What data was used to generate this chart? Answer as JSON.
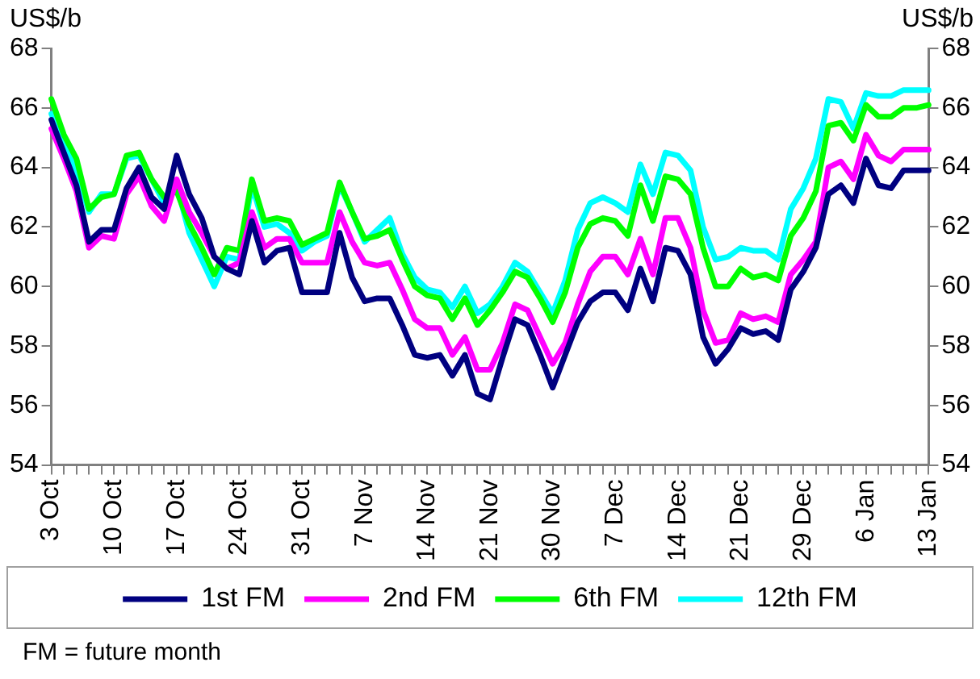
{
  "chart_data": {
    "type": "line",
    "ylabel": "US$/b",
    "y2label": "US$/b",
    "categories": [
      "3 Oct",
      null,
      null,
      null,
      null,
      "10 Oct",
      null,
      null,
      null,
      null,
      "17 Oct",
      null,
      null,
      null,
      null,
      "24 Oct",
      null,
      null,
      null,
      null,
      "31 Oct",
      null,
      null,
      null,
      null,
      "7 Nov",
      null,
      null,
      null,
      null,
      "14 Nov",
      null,
      null,
      null,
      null,
      "21 Nov",
      null,
      null,
      null,
      null,
      "30 Nov",
      null,
      null,
      null,
      null,
      "7 Dec",
      null,
      null,
      null,
      null,
      "14 Dec",
      null,
      null,
      null,
      null,
      "21 Dec",
      null,
      null,
      null,
      null,
      "29 Dec",
      null,
      null,
      null,
      null,
      "6 Jan",
      null,
      null,
      null,
      null,
      "13 Jan"
    ],
    "series": [
      {
        "name": "1st FM",
        "color": "#000080",
        "values": [
          65.6,
          64.5,
          63.4,
          61.5,
          61.9,
          61.9,
          63.3,
          64.0,
          63.0,
          62.6,
          64.4,
          63.1,
          62.3,
          61.0,
          60.6,
          60.4,
          62.2,
          60.8,
          61.2,
          61.3,
          59.8,
          59.8,
          59.8,
          61.8,
          60.3,
          59.5,
          59.6,
          59.6,
          58.7,
          57.7,
          57.6,
          57.7,
          57.0,
          57.7,
          56.4,
          56.2,
          57.6,
          58.9,
          58.7,
          57.7,
          56.6,
          57.7,
          58.8,
          59.5,
          59.8,
          59.8,
          59.2,
          60.6,
          59.5,
          61.3,
          61.2,
          60.4,
          58.3,
          57.4,
          57.9,
          58.6,
          58.4,
          58.5,
          58.2,
          59.9,
          60.5,
          61.3,
          63.1,
          63.4,
          62.8,
          64.3,
          63.4,
          63.3,
          63.9,
          63.9,
          63.9
        ]
      },
      {
        "name": "2nd FM",
        "color": "#ff00ff",
        "values": [
          65.3,
          64.3,
          63.2,
          61.3,
          61.7,
          61.6,
          63.1,
          63.7,
          62.7,
          62.2,
          63.6,
          62.5,
          61.8,
          61.0,
          60.6,
          60.8,
          62.5,
          61.3,
          61.6,
          61.6,
          60.8,
          60.8,
          60.8,
          62.5,
          61.5,
          60.8,
          60.7,
          60.8,
          59.9,
          58.9,
          58.6,
          58.6,
          57.7,
          58.3,
          57.2,
          57.2,
          58.1,
          59.4,
          59.2,
          58.3,
          57.4,
          58.1,
          59.4,
          60.5,
          61.0,
          61.0,
          60.4,
          61.6,
          60.4,
          62.3,
          62.3,
          61.3,
          59.2,
          58.1,
          58.2,
          59.1,
          58.9,
          59.0,
          58.8,
          60.4,
          60.9,
          61.5,
          64.0,
          64.2,
          63.6,
          65.1,
          64.4,
          64.2,
          64.6,
          64.6,
          64.6
        ]
      },
      {
        "name": "6th FM",
        "color": "#00ff00",
        "values": [
          66.3,
          65.1,
          64.3,
          62.6,
          63.0,
          63.1,
          64.4,
          64.5,
          63.6,
          63.0,
          63.2,
          62.1,
          61.3,
          60.4,
          61.3,
          61.2,
          63.6,
          62.2,
          62.3,
          62.2,
          61.4,
          61.6,
          61.8,
          63.5,
          62.5,
          61.6,
          61.7,
          61.9,
          60.9,
          60.0,
          59.7,
          59.6,
          58.9,
          59.6,
          58.7,
          59.2,
          59.8,
          60.5,
          60.3,
          59.6,
          58.8,
          59.8,
          61.3,
          62.1,
          62.3,
          62.2,
          61.7,
          63.4,
          62.2,
          63.7,
          63.6,
          63.1,
          61.3,
          60.0,
          60.0,
          60.6,
          60.3,
          60.4,
          60.2,
          61.7,
          62.3,
          63.2,
          65.4,
          65.5,
          64.9,
          66.1,
          65.7,
          65.7,
          66.0,
          66.0,
          66.1
        ]
      },
      {
        "name": "12th FM",
        "color": "#00ffff",
        "values": [
          65.8,
          64.9,
          63.9,
          62.5,
          63.1,
          63.1,
          64.3,
          64.4,
          63.6,
          62.8,
          63.4,
          61.8,
          60.9,
          60.0,
          61.0,
          60.9,
          63.4,
          62.0,
          62.1,
          61.8,
          61.2,
          61.5,
          61.7,
          63.4,
          62.5,
          61.5,
          61.9,
          62.3,
          61.1,
          60.3,
          59.9,
          59.8,
          59.3,
          60.0,
          59.1,
          59.4,
          60.0,
          60.8,
          60.5,
          59.8,
          59.1,
          60.2,
          61.9,
          62.8,
          63.0,
          62.8,
          62.5,
          64.1,
          63.1,
          64.5,
          64.4,
          63.9,
          62.0,
          60.9,
          61.0,
          61.3,
          61.2,
          61.2,
          60.9,
          62.6,
          63.3,
          64.3,
          66.3,
          66.2,
          65.3,
          66.5,
          66.4,
          66.4,
          66.6,
          66.6,
          66.6
        ]
      }
    ],
    "ylim": [
      54,
      68
    ],
    "yticks": [
      54,
      56,
      58,
      60,
      62,
      64,
      66,
      68
    ],
    "y2lim": [
      54,
      68
    ],
    "y2ticks": [
      54,
      56,
      58,
      60,
      62,
      64,
      66,
      68
    ],
    "legend": "bottom",
    "grid": false,
    "marker": "none",
    "line_style": "solid",
    "annotations": [
      "FM = future month"
    ]
  }
}
